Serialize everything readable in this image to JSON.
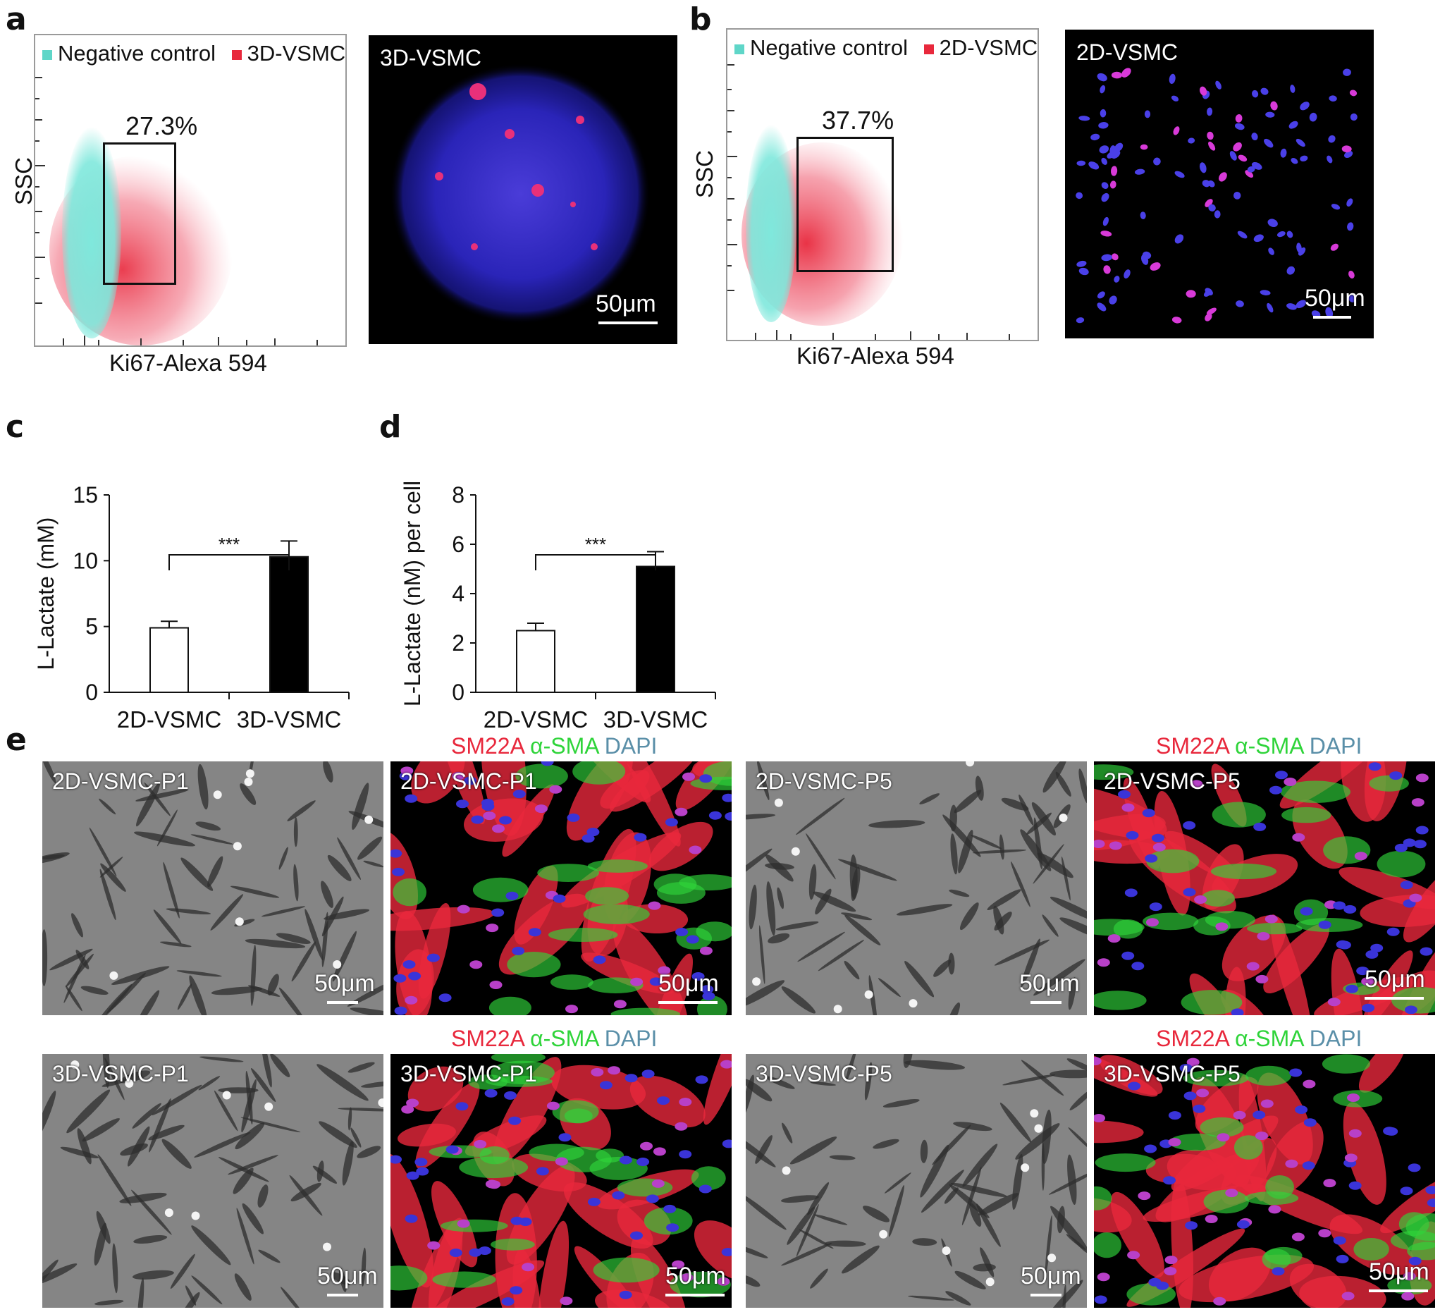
{
  "panels": {
    "a": {
      "letter": "a",
      "legend": [
        {
          "label": "Negative control",
          "color": "#5fd6c8"
        },
        {
          "label": "3D-VSMC",
          "color": "#e8283c"
        }
      ],
      "gate_percent": "27.3%",
      "y_axis_label": "SSC",
      "x_axis_label": "Ki67-Alexa 594",
      "image_label": "3D-VSMC",
      "scale_label": "50μm"
    },
    "b": {
      "letter": "b",
      "legend": [
        {
          "label": "Negative control",
          "color": "#5fd6c8"
        },
        {
          "label": "2D-VSMC",
          "color": "#e8283c"
        }
      ],
      "gate_percent": "37.7%",
      "y_axis_label": "SSC",
      "x_axis_label": "Ki67-Alexa 594",
      "image_label": "2D-VSMC",
      "scale_label": "50μm"
    },
    "e": {
      "letter": "e",
      "stain": {
        "sm22a": "SM22A",
        "asma": "α-SMA",
        "dapi": "DAPI"
      },
      "stain_colors": {
        "sm22a": "#e8283c",
        "asma": "#2fd43a",
        "dapi": "#5a8fa8"
      },
      "images": [
        {
          "label": "2D-VSMC-P1",
          "scale": "50μm",
          "kind": "phase"
        },
        {
          "label": "2D-VSMC-P1",
          "scale": "50μm",
          "kind": "fluor"
        },
        {
          "label": "2D-VSMC-P5",
          "scale": "50μm",
          "kind": "phase"
        },
        {
          "label": "2D-VSMC-P5",
          "scale": "50μm",
          "kind": "fluor"
        },
        {
          "label": "3D-VSMC-P1",
          "scale": "50μm",
          "kind": "phase"
        },
        {
          "label": "3D-VSMC-P1",
          "scale": "50μm",
          "kind": "fluor"
        },
        {
          "label": "3D-VSMC-P5",
          "scale": "50μm",
          "kind": "phase"
        },
        {
          "label": "3D-VSMC-P5",
          "scale": "50μm",
          "kind": "fluor"
        }
      ]
    }
  },
  "chart_data": [
    {
      "panel": "c",
      "type": "bar",
      "categories": [
        "2D-VSMC",
        "3D-VSMC"
      ],
      "values": [
        4.9,
        10.3
      ],
      "errors": [
        0.5,
        1.2
      ],
      "bar_colors": [
        "#ffffff",
        "#000000"
      ],
      "ylabel": "L-Lactate (mM)",
      "xlabel": "",
      "ylim": [
        0,
        15
      ],
      "yticks": [
        0,
        5,
        10,
        15
      ],
      "significance": "***",
      "grid": false
    },
    {
      "panel": "d",
      "type": "bar",
      "categories": [
        "2D-VSMC",
        "3D-VSMC"
      ],
      "values": [
        2.5,
        5.1
      ],
      "errors": [
        0.3,
        0.6
      ],
      "bar_colors": [
        "#ffffff",
        "#000000"
      ],
      "ylabel": "L-Lactate (nM) per cell",
      "xlabel": "",
      "ylim": [
        0,
        8
      ],
      "yticks": [
        0,
        2,
        4,
        6,
        8
      ],
      "significance": "***",
      "grid": false
    }
  ]
}
